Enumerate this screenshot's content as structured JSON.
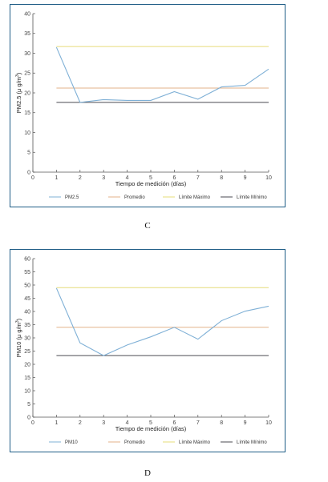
{
  "chart_data": [
    {
      "type": "line",
      "panel_label": "C",
      "xlabel": "Tiempo de medición (días)",
      "ylabel": "PM2.5 (μ g/m3)",
      "ylabel_main": "PM2.5 (",
      "ylabel_mu": "μ",
      "ylabel_unit": " g/m",
      "ylabel_exp": "3",
      "ylabel_close": ")",
      "xlim": [
        0,
        10
      ],
      "ylim": [
        0,
        40
      ],
      "xticks": [
        0,
        1,
        2,
        3,
        4,
        5,
        6,
        7,
        8,
        9,
        10
      ],
      "yticks": [
        0,
        5,
        10,
        15,
        20,
        25,
        30,
        35,
        40
      ],
      "grid": false,
      "legend_position": "bottom",
      "x": [
        1,
        2,
        3,
        4,
        5,
        6,
        7,
        8,
        9,
        10
      ],
      "series": [
        {
          "name": "PM2.5",
          "color": "#7fb0d6",
          "values": [
            31.5,
            17.6,
            18.3,
            18.1,
            18.1,
            20.3,
            18.4,
            21.5,
            21.9,
            26.0
          ]
        },
        {
          "name": "Promedio",
          "color": "#e3b289",
          "values": [
            21.2,
            21.2,
            21.2,
            21.2,
            21.2,
            21.2,
            21.2,
            21.2,
            21.2,
            21.2
          ]
        },
        {
          "name": "Límite Máximo",
          "color": "#e6dc7a",
          "values": [
            31.7,
            31.7,
            31.7,
            31.7,
            31.7,
            31.7,
            31.7,
            31.7,
            31.7,
            31.7
          ]
        },
        {
          "name": "Límite Mínimo",
          "color": "#4a4a52",
          "values": [
            17.6,
            17.6,
            17.6,
            17.6,
            17.6,
            17.6,
            17.6,
            17.6,
            17.6,
            17.6
          ]
        }
      ]
    },
    {
      "type": "line",
      "panel_label": "D",
      "xlabel": "Tiempo de medición (días)",
      "ylabel": "PM10 (μ g/m3)",
      "ylabel_main": "PM10 (",
      "ylabel_mu": "μ",
      "ylabel_unit": " g/m",
      "ylabel_exp": "3",
      "ylabel_close": ")",
      "xlim": [
        0,
        10
      ],
      "ylim": [
        0,
        60
      ],
      "xticks": [
        0,
        1,
        2,
        3,
        4,
        5,
        6,
        7,
        8,
        9,
        10
      ],
      "yticks": [
        0,
        5,
        10,
        15,
        20,
        25,
        30,
        35,
        40,
        45,
        50,
        55,
        60
      ],
      "grid": false,
      "legend_position": "bottom",
      "x": [
        1,
        2,
        3,
        4,
        5,
        6,
        7,
        8,
        9,
        10
      ],
      "series": [
        {
          "name": "PM10",
          "color": "#7fb0d6",
          "values": [
            48.8,
            28.1,
            23.3,
            27.3,
            30.4,
            34.0,
            29.5,
            36.5,
            40.1,
            42.0
          ]
        },
        {
          "name": "Promedio",
          "color": "#e3b289",
          "values": [
            34.0,
            34.0,
            34.0,
            34.0,
            34.0,
            34.0,
            34.0,
            34.0,
            34.0,
            34.0
          ]
        },
        {
          "name": "Límite Máximo",
          "color": "#e6dc7a",
          "values": [
            49.0,
            49.0,
            49.0,
            49.0,
            49.0,
            49.0,
            49.0,
            49.0,
            49.0,
            49.0
          ]
        },
        {
          "name": "Límite Mínimo",
          "color": "#4a4a52",
          "values": [
            23.3,
            23.3,
            23.3,
            23.3,
            23.3,
            23.3,
            23.3,
            23.3,
            23.3,
            23.3
          ]
        }
      ]
    }
  ]
}
